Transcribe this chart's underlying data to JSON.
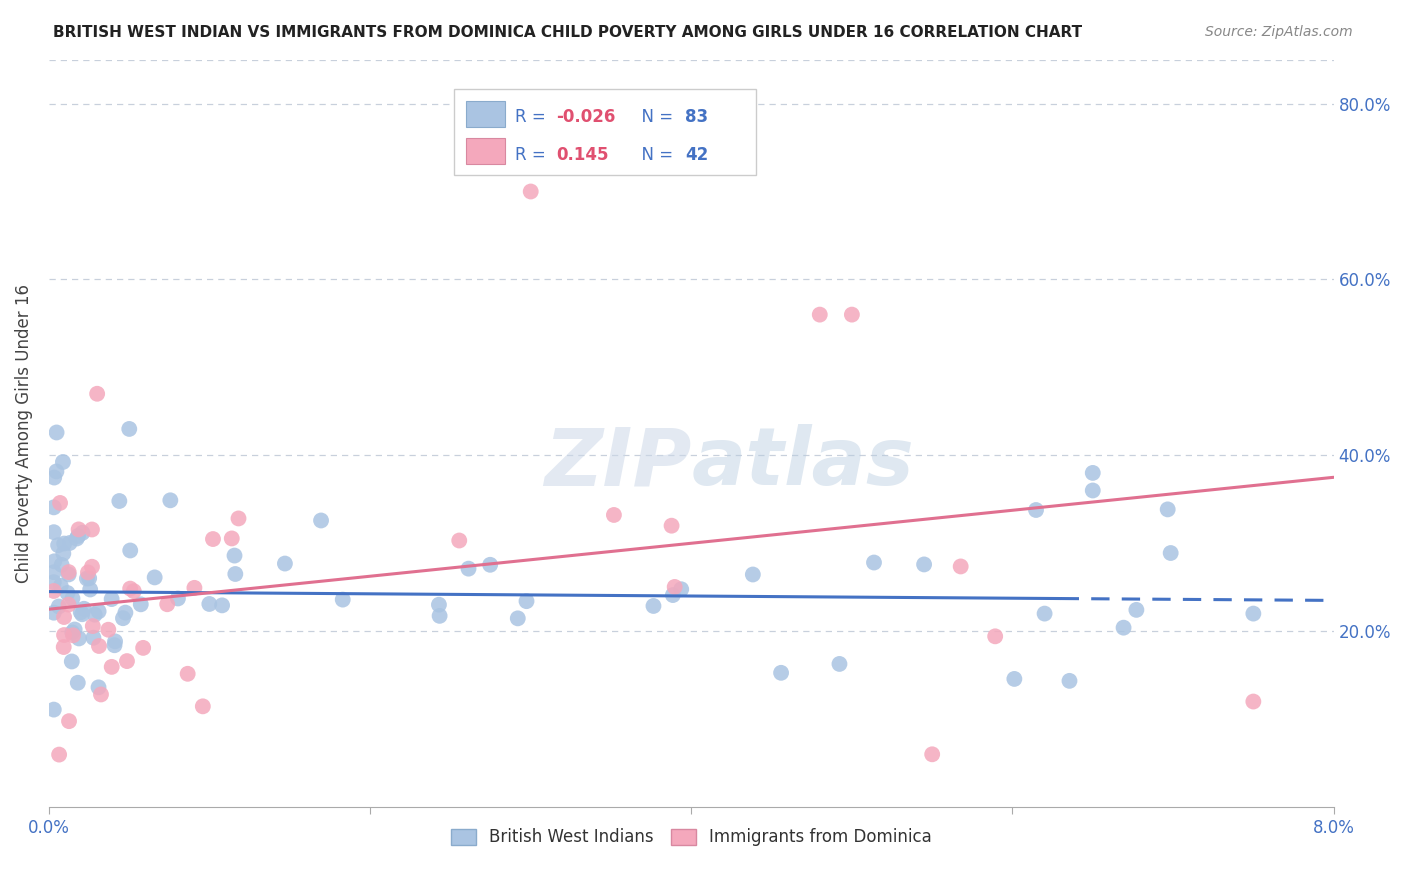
{
  "title": "BRITISH WEST INDIAN VS IMMIGRANTS FROM DOMINICA CHILD POVERTY AMONG GIRLS UNDER 16 CORRELATION CHART",
  "source": "Source: ZipAtlas.com",
  "ylabel": "Child Poverty Among Girls Under 16",
  "xlim": [
    0.0,
    0.08
  ],
  "ylim": [
    0.0,
    0.85
  ],
  "yticks": [
    0.2,
    0.4,
    0.6,
    0.8
  ],
  "ytick_labels": [
    "20.0%",
    "40.0%",
    "60.0%",
    "80.0%"
  ],
  "xticks": [
    0.0,
    0.02,
    0.04,
    0.06,
    0.08
  ],
  "xtick_labels": [
    "0.0%",
    "",
    "",
    "",
    "8.0%"
  ],
  "blue_R": -0.026,
  "blue_N": 83,
  "pink_R": 0.145,
  "pink_N": 42,
  "blue_color": "#aac4e2",
  "pink_color": "#f4a8bc",
  "blue_line_color": "#4472c4",
  "pink_line_color": "#e07090",
  "blue_label": "British West Indians",
  "pink_label": "Immigrants from Dominica",
  "legend_R_color": "#4472c4",
  "legend_val_blue": "#e05070",
  "legend_val_pink": "#e05070",
  "legend_N_color": "#4472c4",
  "grid_color": "#c8d0dc",
  "title_color": "#222222",
  "source_color": "#888888",
  "ylabel_color": "#444444",
  "tick_color": "#4472c4"
}
